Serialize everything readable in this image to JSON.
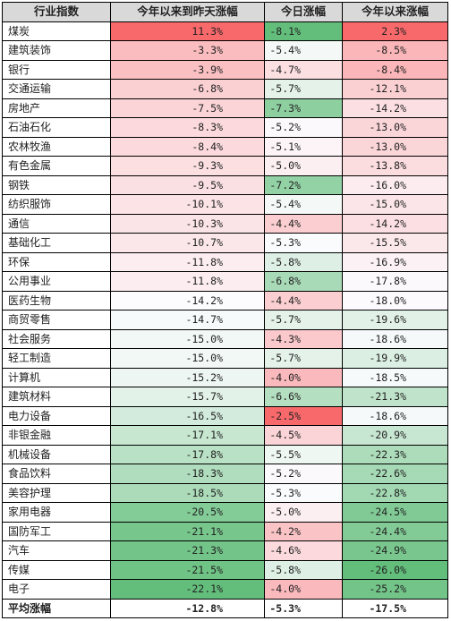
{
  "headers": [
    "行业指数",
    "今年以来到昨天涨幅",
    "今日涨幅",
    "今年以来涨幅"
  ],
  "rows": [
    {
      "name": "煤炭",
      "ytd_prev": "11.3%",
      "today": "-8.1%",
      "ytd": "2.3%"
    },
    {
      "name": "建筑装饰",
      "ytd_prev": "-3.3%",
      "today": "-5.4%",
      "ytd": "-8.5%"
    },
    {
      "name": "银行",
      "ytd_prev": "-3.9%",
      "today": "-4.7%",
      "ytd": "-8.4%"
    },
    {
      "name": "交通运输",
      "ytd_prev": "-6.8%",
      "today": "-5.7%",
      "ytd": "-12.1%"
    },
    {
      "name": "房地产",
      "ytd_prev": "-7.5%",
      "today": "-7.3%",
      "ytd": "-14.2%"
    },
    {
      "name": "石油石化",
      "ytd_prev": "-8.3%",
      "today": "-5.2%",
      "ytd": "-13.0%"
    },
    {
      "name": "农林牧渔",
      "ytd_prev": "-8.4%",
      "today": "-5.1%",
      "ytd": "-13.0%"
    },
    {
      "name": "有色金属",
      "ytd_prev": "-9.3%",
      "today": "-5.0%",
      "ytd": "-13.8%"
    },
    {
      "name": "钢铁",
      "ytd_prev": "-9.5%",
      "today": "-7.2%",
      "ytd": "-16.0%"
    },
    {
      "name": "纺织服饰",
      "ytd_prev": "-10.1%",
      "today": "-5.4%",
      "ytd": "-15.0%"
    },
    {
      "name": "通信",
      "ytd_prev": "-10.3%",
      "today": "-4.4%",
      "ytd": "-14.2%"
    },
    {
      "name": "基础化工",
      "ytd_prev": "-10.7%",
      "today": "-5.3%",
      "ytd": "-15.5%"
    },
    {
      "name": "环保",
      "ytd_prev": "-11.8%",
      "today": "-5.8%",
      "ytd": "-16.9%"
    },
    {
      "name": "公用事业",
      "ytd_prev": "-11.8%",
      "today": "-6.8%",
      "ytd": "-17.8%"
    },
    {
      "name": "医药生物",
      "ytd_prev": "-14.2%",
      "today": "-4.4%",
      "ytd": "-18.0%"
    },
    {
      "name": "商贸零售",
      "ytd_prev": "-14.7%",
      "today": "-5.7%",
      "ytd": "-19.6%"
    },
    {
      "name": "社会服务",
      "ytd_prev": "-15.0%",
      "today": "-4.3%",
      "ytd": "-18.6%"
    },
    {
      "name": "轻工制造",
      "ytd_prev": "-15.0%",
      "today": "-5.7%",
      "ytd": "-19.9%"
    },
    {
      "name": "计算机",
      "ytd_prev": "-15.2%",
      "today": "-4.0%",
      "ytd": "-18.5%"
    },
    {
      "name": "建筑材料",
      "ytd_prev": "-15.7%",
      "today": "-6.6%",
      "ytd": "-21.3%"
    },
    {
      "name": "电力设备",
      "ytd_prev": "-16.5%",
      "today": "-2.5%",
      "ytd": "-18.6%"
    },
    {
      "name": "非银金融",
      "ytd_prev": "-17.1%",
      "today": "-4.5%",
      "ytd": "-20.9%"
    },
    {
      "name": "机械设备",
      "ytd_prev": "-17.8%",
      "today": "-5.5%",
      "ytd": "-22.3%"
    },
    {
      "name": "食品饮料",
      "ytd_prev": "-18.3%",
      "today": "-5.2%",
      "ytd": "-22.6%"
    },
    {
      "name": "美容护理",
      "ytd_prev": "-18.5%",
      "today": "-5.3%",
      "ytd": "-22.8%"
    },
    {
      "name": "家用电器",
      "ytd_prev": "-20.5%",
      "today": "-5.0%",
      "ytd": "-24.5%"
    },
    {
      "name": "国防军工",
      "ytd_prev": "-21.1%",
      "today": "-4.2%",
      "ytd": "-24.4%"
    },
    {
      "name": "汽车",
      "ytd_prev": "-21.3%",
      "today": "-4.6%",
      "ytd": "-24.9%"
    },
    {
      "name": "传媒",
      "ytd_prev": "-21.5%",
      "today": "-5.8%",
      "ytd": "-26.0%"
    },
    {
      "name": "电子",
      "ytd_prev": "-22.1%",
      "today": "-4.0%",
      "ytd": "-25.2%"
    }
  ],
  "average": {
    "name": "平均涨幅",
    "ytd_prev": "-12.8%",
    "today": "-5.3%",
    "ytd": "-17.5%"
  },
  "colors": {
    "header_bg": "#d9d9d9",
    "scale_high": "#f8696b",
    "scale_mid": "#fcfcff",
    "scale_low": "#63be7b",
    "border": "#000000"
  }
}
